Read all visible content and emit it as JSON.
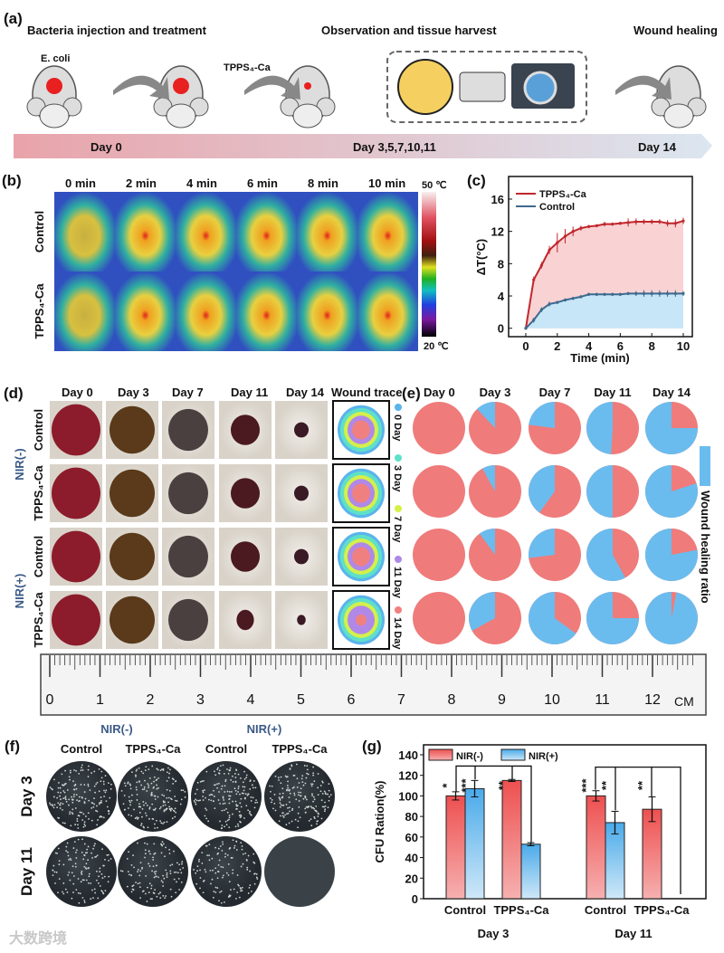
{
  "panel_labels": {
    "a": "(a)",
    "b": "(b)",
    "c": "(c)",
    "d": "(d)",
    "e": "(e)",
    "f": "(f)",
    "g": "(g)"
  },
  "timeline": {
    "stage1": "Bacteria injection and treatment",
    "stage2": "Observation and tissue harvest",
    "stage3": "Wound healing",
    "ecoli": "E. coli",
    "drug": "TPPS₄-Ca",
    "day0": "Day 0",
    "day_mid": "Day 3,5,7,10,11",
    "day14": "Day 14",
    "colors": {
      "bar_start": "#e9a3aa",
      "bar_end": "#dbe6f0"
    }
  },
  "thermal": {
    "times": [
      "0 min",
      "2 min",
      "4 min",
      "6 min",
      "8 min",
      "10 min"
    ],
    "rows": [
      "Control",
      "TPPS₄-Ca"
    ],
    "scale_max": "50 ℃",
    "scale_min": "20 ℃"
  },
  "wound": {
    "days": [
      "Day 0",
      "Day 3",
      "Day 7",
      "Day 11",
      "Day 14"
    ],
    "trace_header": "Wound trace",
    "groups": [
      "NIR(-)",
      "NIR(+)"
    ],
    "rows": [
      "Control",
      "TPPS₄-Ca",
      "Control",
      "TPPS₄-Ca"
    ],
    "trace_legend": [
      {
        "label": "0 Day",
        "color": "#5ab4ec"
      },
      {
        "label": "3 Day",
        "color": "#5fe0c8"
      },
      {
        "label": "7 Day",
        "color": "#d4f04a"
      },
      {
        "label": "11 Day",
        "color": "#b088e8"
      },
      {
        "label": "14 Day",
        "color": "#f08080"
      }
    ]
  },
  "pies": {
    "days": [
      "Day 0",
      "Day 3",
      "Day 7",
      "Day 11",
      "Day 14"
    ],
    "legend": "Wound healing ratio",
    "colors": {
      "healed": "#6bbcee",
      "wound": "#ef7b7b"
    },
    "healed_fraction": [
      [
        0,
        0.12,
        0.23,
        0.49,
        0.75
      ],
      [
        0,
        0.08,
        0.4,
        0.5,
        0.8
      ],
      [
        0,
        0.1,
        0.27,
        0.58,
        0.78
      ],
      [
        0,
        0.33,
        0.65,
        0.75,
        0.97
      ]
    ]
  },
  "ruler": {
    "numbers": [
      "0",
      "1",
      "2",
      "3",
      "4",
      "5",
      "6",
      "7",
      "8",
      "9",
      "10",
      "11",
      "12"
    ],
    "unit": "CM"
  },
  "plates": {
    "groups": [
      "NIR(-)",
      "NIR(+)"
    ],
    "cols": [
      "Control",
      "TPPS₄-Ca",
      "Control",
      "TPPS₄-Ca"
    ],
    "rows": [
      "Day 3",
      "Day 11"
    ]
  },
  "watermark": "大数跨境",
  "chart_data": [
    {
      "type": "line",
      "xlabel": "Time (min)",
      "ylabel": "ΔT(°C)",
      "xlim": [
        0,
        10
      ],
      "ylim": [
        -1,
        18
      ],
      "xticks": [
        "0",
        "2",
        "4",
        "6",
        "8",
        "10"
      ],
      "yticks": [
        "0",
        "4",
        "8",
        "12",
        "16"
      ],
      "x": [
        0,
        0.5,
        1,
        1.5,
        2,
        2.5,
        3,
        3.5,
        4,
        4.5,
        5,
        5.5,
        6,
        6.5,
        7,
        7.5,
        8,
        8.5,
        9,
        9.5,
        10
      ],
      "series": [
        {
          "name": "TPPS₄-Ca",
          "color": "#c0272d",
          "fill": "#f9d2d3",
          "values": [
            0,
            6.0,
            7.8,
            9.7,
            10.6,
            11.4,
            12.0,
            12.4,
            12.6,
            12.7,
            12.9,
            12.9,
            13.0,
            13.1,
            13.2,
            13.2,
            13.2,
            13.2,
            13.0,
            13.0,
            13.3
          ],
          "errors": [
            0,
            0.4,
            0.4,
            0.5,
            1.2,
            0.9,
            0.6,
            0.3,
            0.2,
            0.2,
            0.3,
            0.2,
            0.2,
            0.5,
            0.4,
            0.3,
            0.3,
            0.3,
            0.4,
            0.5,
            0.4
          ]
        },
        {
          "name": "Control",
          "color": "#3e6a8e",
          "fill": "#c7e6f8",
          "values": [
            0,
            1.0,
            2.3,
            3.0,
            3.2,
            3.5,
            3.7,
            3.9,
            4.2,
            4.2,
            4.2,
            4.2,
            4.2,
            4.3,
            4.3,
            4.3,
            4.3,
            4.3,
            4.3,
            4.3,
            4.3
          ],
          "errors": [
            0,
            0.3,
            0.3,
            0.3,
            0.2,
            0.2,
            0.2,
            0.2,
            0.2,
            0.2,
            0.2,
            0.2,
            0.2,
            0.2,
            0.3,
            0.4,
            0.4,
            0.4,
            0.4,
            0.4,
            0.3
          ]
        }
      ],
      "legend": "top-left"
    },
    {
      "type": "bar",
      "ylabel": "CFU Ration(%)",
      "ylim": [
        0,
        140
      ],
      "yticks": [
        "0",
        "20",
        "40",
        "60",
        "80",
        "100",
        "120",
        "140"
      ],
      "categories": [
        "Control",
        "TPPS₄-Ca",
        "Control",
        "TPPS₄-Ca"
      ],
      "groups": [
        "Day 3",
        "Day 11"
      ],
      "series": [
        {
          "name": "NIR(-)",
          "color": "#ee5a5a",
          "values": [
            100,
            115,
            100,
            87
          ],
          "errors": [
            4,
            1,
            5,
            12
          ]
        },
        {
          "name": "NIR(+)",
          "color": "#5eb4ec",
          "values": [
            107,
            53,
            74,
            0
          ],
          "errors": [
            8,
            1.5,
            11,
            0
          ]
        }
      ],
      "significance": [
        {
          "bar": "Day 3 Control NIR(-)",
          "mark": "*"
        },
        {
          "bar": "Day 3 Control NIR(+)",
          "mark": "***"
        },
        {
          "bar": "Day 3 TPPS₄-Ca NIR(-)",
          "mark": "**"
        },
        {
          "bar": "Day 11 Control NIR(-)",
          "mark": "***"
        },
        {
          "bar": "Day 11 Control NIR(+)",
          "mark": "**"
        },
        {
          "bar": "Day 11 TPPS₄-Ca NIR(-)",
          "mark": "**"
        }
      ],
      "legend": "top-left"
    }
  ]
}
